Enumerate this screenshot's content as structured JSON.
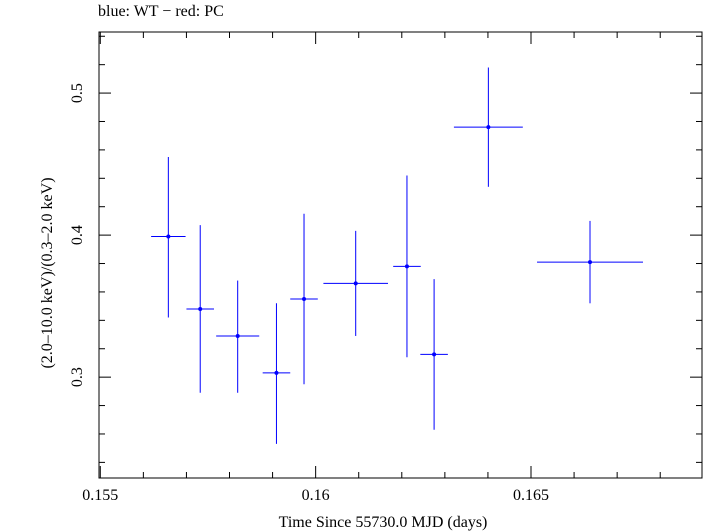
{
  "chart_data": {
    "type": "scatter",
    "title": "blue: WT − red: PC",
    "xlabel": "Time Since 55730.0 MJD (days)",
    "ylabel": "(2.0–10.0 keV)/(0.3–2.0 keV)",
    "xlim": [
      0.15497,
      0.16897
    ],
    "ylim": [
      0.229,
      0.543
    ],
    "x_ticks": [
      {
        "value": 0.155,
        "label": "0.155"
      },
      {
        "value": 0.16,
        "label": "0.16"
      },
      {
        "value": 0.165,
        "label": "0.165"
      }
    ],
    "y_ticks": [
      {
        "value": 0.3,
        "label": "0.3"
      },
      {
        "value": 0.4,
        "label": "0.4"
      },
      {
        "value": 0.5,
        "label": "0.5"
      }
    ],
    "grid": false,
    "series": [
      {
        "name": "WT",
        "color": "#0000ff",
        "points": [
          {
            "x": 0.15658,
            "y": 0.399,
            "xerr": 0.0004,
            "yerr_lo": 0.057,
            "yerr_hi": 0.056
          },
          {
            "x": 0.15732,
            "y": 0.348,
            "xerr": 0.00032,
            "yerr_lo": 0.059,
            "yerr_hi": 0.059
          },
          {
            "x": 0.15819,
            "y": 0.329,
            "xerr": 0.0005,
            "yerr_lo": 0.04,
            "yerr_hi": 0.039
          },
          {
            "x": 0.15909,
            "y": 0.303,
            "xerr": 0.00032,
            "yerr_lo": 0.05,
            "yerr_hi": 0.049
          },
          {
            "x": 0.15973,
            "y": 0.355,
            "xerr": 0.00032,
            "yerr_lo": 0.06,
            "yerr_hi": 0.06
          },
          {
            "x": 0.16093,
            "y": 0.366,
            "xerr": 0.00075,
            "yerr_lo": 0.037,
            "yerr_hi": 0.037
          },
          {
            "x": 0.16212,
            "y": 0.378,
            "xerr": 0.00032,
            "yerr_lo": 0.064,
            "yerr_hi": 0.064
          },
          {
            "x": 0.16275,
            "y": 0.316,
            "xerr": 0.00032,
            "yerr_lo": 0.053,
            "yerr_hi": 0.053
          },
          {
            "x": 0.16401,
            "y": 0.476,
            "xerr": 0.0008,
            "yerr_lo": 0.042,
            "yerr_hi": 0.042
          },
          {
            "x": 0.16637,
            "y": 0.381,
            "xerr": 0.00123,
            "yerr_lo": 0.029,
            "yerr_hi": 0.029
          }
        ]
      }
    ]
  }
}
